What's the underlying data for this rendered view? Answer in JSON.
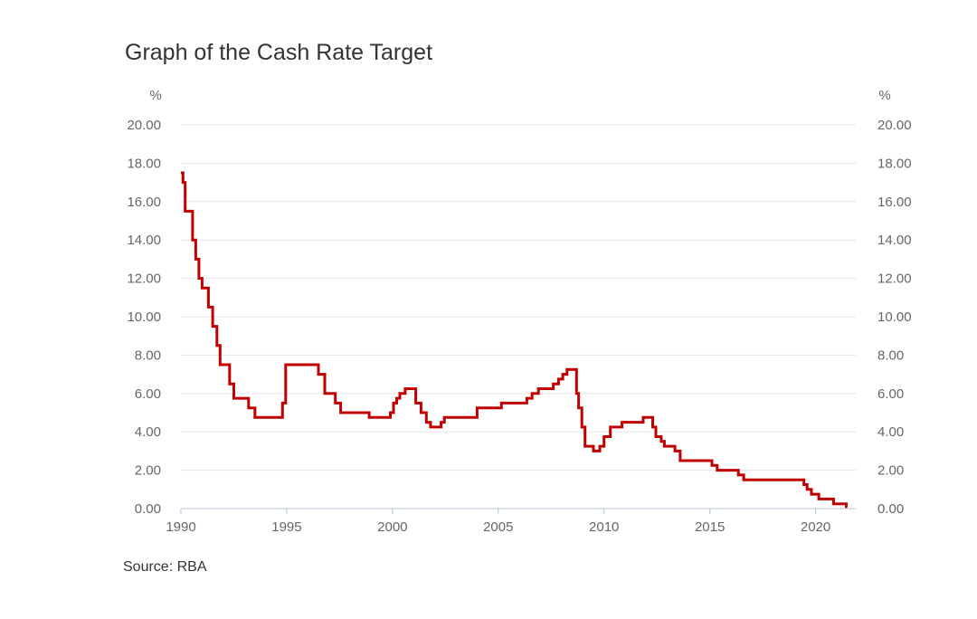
{
  "chart_data": {
    "type": "line",
    "title": "Graph of the Cash Rate Target",
    "ylabel_left": "%",
    "ylabel_right": "%",
    "xlim": [
      1990,
      2021.5
    ],
    "ylim": [
      0,
      20
    ],
    "x_ticks": [
      1990,
      1995,
      2000,
      2005,
      2010,
      2015,
      2020
    ],
    "x_tick_labels": [
      "1990",
      "1995",
      "2000",
      "2005",
      "2010",
      "2015",
      "2020"
    ],
    "y_ticks": [
      0,
      2,
      4,
      6,
      8,
      10,
      12,
      14,
      16,
      18,
      20
    ],
    "y_tick_labels": [
      "0.00",
      "2.00",
      "4.00",
      "6.00",
      "8.00",
      "10.00",
      "12.00",
      "14.00",
      "16.00",
      "18.00",
      "20.00"
    ],
    "grid": true,
    "step": true,
    "series": [
      {
        "name": "Cash Rate Target",
        "color": "#c00000",
        "x": [
          1990.0,
          1990.1,
          1990.2,
          1990.55,
          1990.7,
          1990.85,
          1991.0,
          1991.3,
          1991.5,
          1991.7,
          1991.85,
          1992.0,
          1992.3,
          1992.5,
          1992.7,
          1993.2,
          1993.5,
          1994.6,
          1994.8,
          1994.95,
          1996.5,
          1996.8,
          1997.3,
          1997.55,
          1997.7,
          1998.9,
          1999.9,
          2000.05,
          2000.2,
          2000.35,
          2000.6,
          2000.8,
          2001.1,
          2001.35,
          2001.6,
          2001.8,
          2002.3,
          2002.45,
          2003.9,
          2004.0,
          2005.0,
          2005.15,
          2006.35,
          2006.6,
          2006.9,
          2007.6,
          2007.85,
          2008.05,
          2008.25,
          2008.7,
          2008.8,
          2008.95,
          2009.1,
          2009.5,
          2009.8,
          2010.0,
          2010.3,
          2010.85,
          2011.85,
          2012.3,
          2012.45,
          2012.7,
          2012.85,
          2013.35,
          2013.6,
          2015.1,
          2015.35,
          2016.35,
          2016.6,
          2019.45,
          2019.6,
          2019.8,
          2020.15,
          2020.85,
          2021.45
        ],
        "values": [
          17.5,
          17.0,
          15.5,
          14.0,
          13.0,
          12.0,
          11.5,
          10.5,
          9.5,
          8.5,
          7.5,
          7.5,
          6.5,
          5.75,
          5.75,
          5.25,
          4.75,
          4.75,
          5.5,
          7.5,
          7.0,
          6.0,
          5.5,
          5.0,
          5.0,
          4.75,
          5.0,
          5.5,
          5.75,
          6.0,
          6.25,
          6.25,
          5.5,
          5.0,
          4.5,
          4.25,
          4.5,
          4.75,
          4.75,
          5.25,
          5.25,
          5.5,
          5.75,
          6.0,
          6.25,
          6.5,
          6.75,
          7.0,
          7.25,
          6.0,
          5.25,
          4.25,
          3.25,
          3.0,
          3.25,
          3.75,
          4.25,
          4.5,
          4.75,
          4.25,
          3.75,
          3.5,
          3.25,
          3.0,
          2.5,
          2.25,
          2.0,
          1.75,
          1.5,
          1.25,
          1.0,
          0.75,
          0.5,
          0.25,
          0.1
        ]
      }
    ]
  },
  "source": "Source: RBA"
}
